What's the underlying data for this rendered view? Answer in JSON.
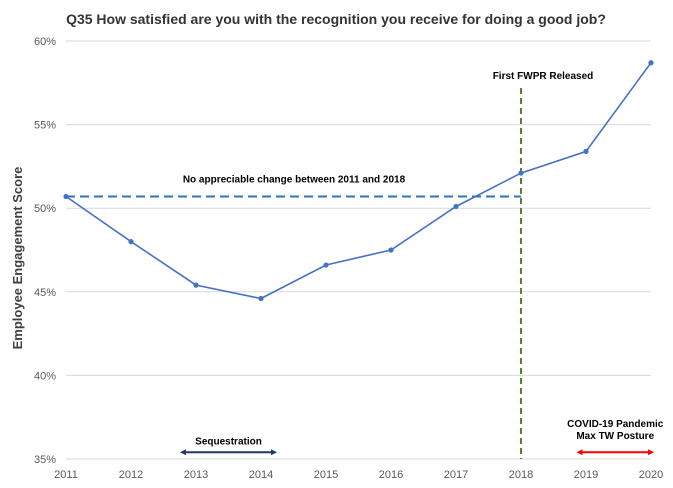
{
  "chart_data": {
    "type": "line",
    "title": "Q35 How satisfied are you with the recognition you receive for doing a good job?",
    "ylabel": "Employee Engagement Score",
    "xlabel": "",
    "x": [
      2011,
      2012,
      2013,
      2014,
      2015,
      2016,
      2017,
      2018,
      2019,
      2020
    ],
    "series": [
      {
        "values": [
          50.7,
          48.0,
          45.4,
          44.6,
          46.6,
          47.5,
          50.1,
          52.1,
          53.4,
          58.7
        ],
        "color": "#4472C4"
      }
    ],
    "ylim": [
      35,
      60
    ],
    "yticks": [
      35,
      40,
      45,
      50,
      55,
      60
    ],
    "ytick_labels": [
      "35%",
      "40%",
      "45%",
      "50%",
      "55%",
      "60%"
    ],
    "xtick_labels": [
      "2011",
      "2012",
      "2013",
      "2014",
      "2015",
      "2016",
      "2017",
      "2018",
      "2019",
      "2020"
    ],
    "grid": true,
    "annotations": {
      "baseline": {
        "text": "No appreciable change between 2011 and 2018",
        "y": 50.7,
        "x_start": 2011,
        "x_end": 2018,
        "color": "#2E75B6"
      },
      "fwpr": {
        "text": "First FWPR Released",
        "x": 2018,
        "color": "#548235"
      },
      "sequestration": {
        "text": "Sequestration",
        "x_start": 2012.8,
        "x_end": 2014.2,
        "y": 35.4,
        "color": "#1F3864"
      },
      "covid": {
        "lines": [
          "COVID-19 Pandemic",
          "Max TW Posture"
        ],
        "x_start": 2018.9,
        "x_end": 2020,
        "y": 35.4,
        "color": "#FF0000"
      }
    }
  }
}
